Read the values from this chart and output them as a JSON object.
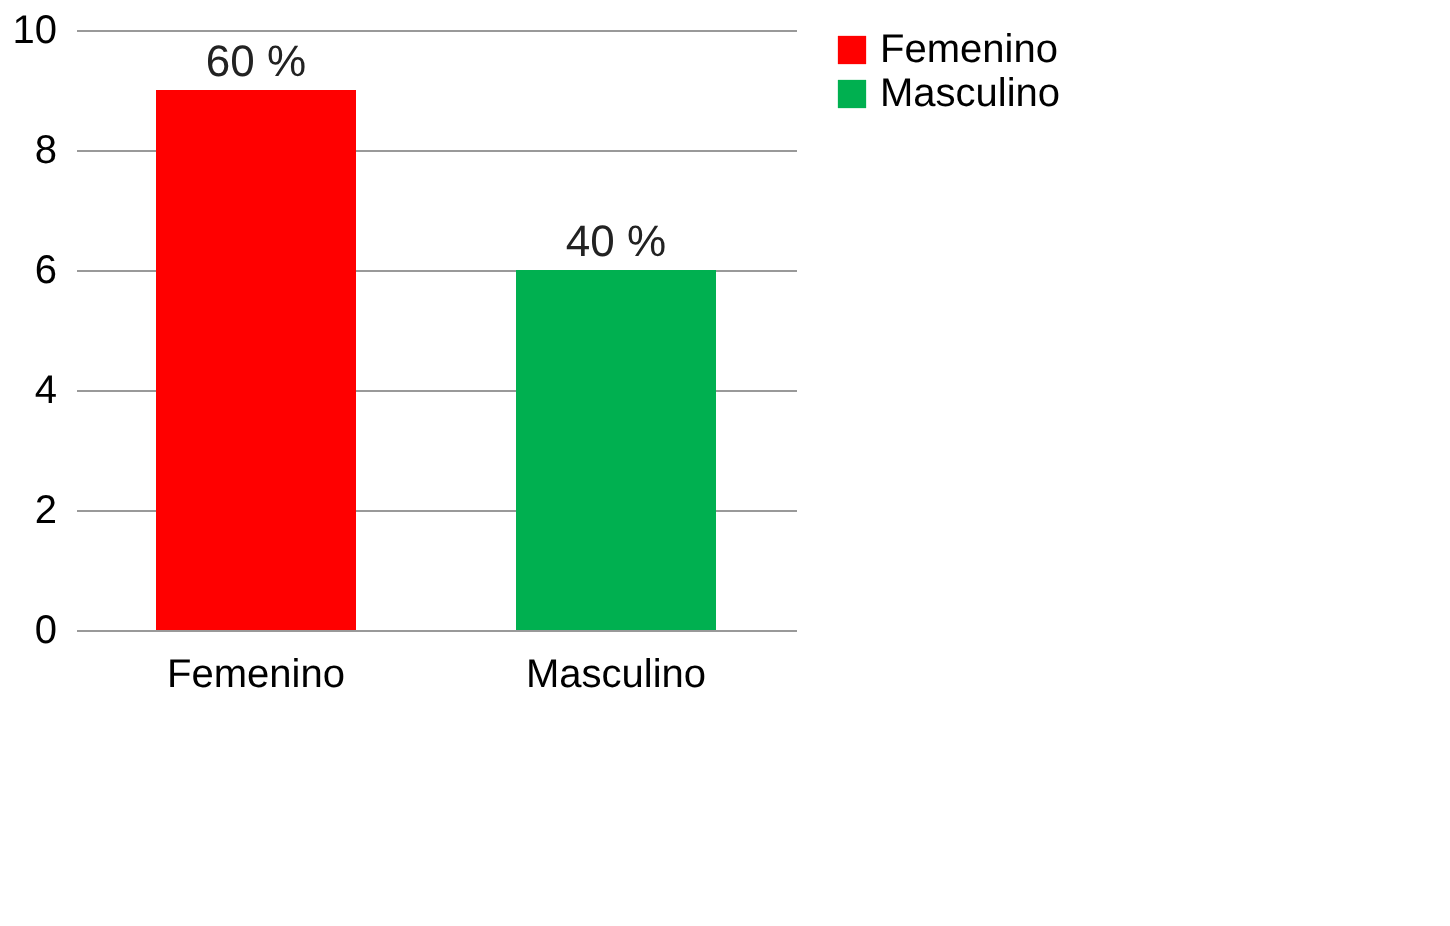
{
  "chart_data": {
    "type": "bar",
    "categories": [
      "Femenino",
      "Masculino"
    ],
    "series": [
      {
        "name": "Femenino",
        "color": "#ff0000",
        "values": [
          9,
          null
        ]
      },
      {
        "name": "Masculino",
        "color": "#00b050",
        "values": [
          null,
          6
        ]
      }
    ],
    "annotations": [
      {
        "text": "60 %",
        "x": "Femenino",
        "y": 9
      },
      {
        "text": "40 %",
        "x": "Masculino",
        "y": 6
      }
    ],
    "ylim": [
      0,
      10
    ],
    "yticks": [
      0,
      2,
      4,
      6,
      8,
      10
    ],
    "grid": "y",
    "legend": "right"
  }
}
